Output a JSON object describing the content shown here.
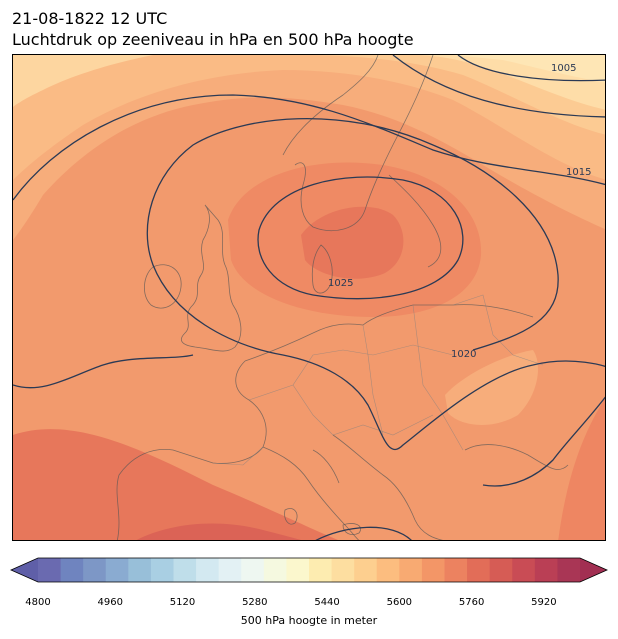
{
  "title": {
    "line1": "21-08-1822 12 UTC",
    "line2": "Luchtdruk op zeeniveau in hPa en 500 hPa hoogte"
  },
  "isobar_labels": [
    "1005",
    "1015",
    "1020",
    "1025"
  ],
  "colorbar": {
    "label": "500 hPa hoogte in meter",
    "ticks": [
      "4800",
      "4960",
      "5120",
      "5280",
      "5440",
      "5600",
      "5760",
      "5920"
    ],
    "range": [
      4800,
      5960
    ],
    "step": 40,
    "extend": "both",
    "colormap": "RdYlBu_r",
    "colors": [
      "#6a6ab0",
      "#6f84bf",
      "#7d97c6",
      "#8aabd1",
      "#98bfd9",
      "#a9cfe3",
      "#bfdeea",
      "#d3e9f1",
      "#e3f1f4",
      "#eef7f1",
      "#f5f9e0",
      "#fbf7cd",
      "#fdecb0",
      "#fddea0",
      "#fdcf8f",
      "#fcbd7f",
      "#f8aa72",
      "#f39667",
      "#ec8260",
      "#e26d58",
      "#d65c55",
      "#c94c55",
      "#ba3f55",
      "#a93655"
    ],
    "under_color": "#5f5fa8",
    "over_color": "#a22f52"
  },
  "map": {
    "projection": "plate-carree",
    "region": "Europe",
    "colors": {
      "coastline": "#555555",
      "borders": "#808080",
      "isobar": "#2b3a55"
    }
  }
}
